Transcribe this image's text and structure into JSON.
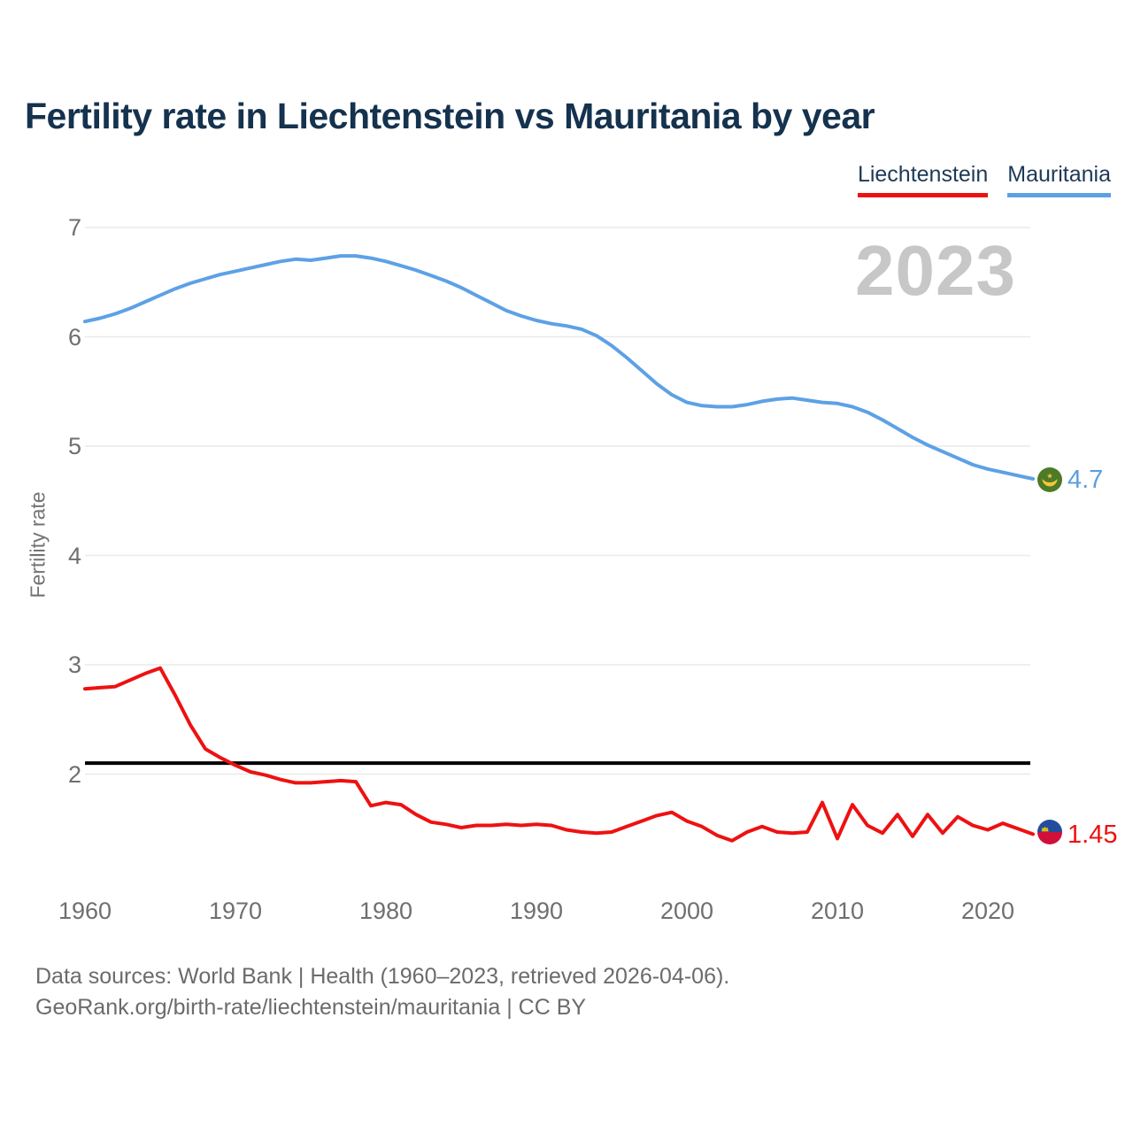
{
  "header": {
    "title": "Fertility rate in Liechtenstein vs Mauritania by year"
  },
  "legend": {
    "items": [
      {
        "label": "Liechtenstein",
        "underline_color": "#ee1111"
      },
      {
        "label": "Mauritania",
        "underline_color": "#5da1e5"
      }
    ]
  },
  "watermark_year": "2023",
  "chart_data": {
    "type": "line",
    "title": "Fertility rate in Liechtenstein vs Mauritania by year",
    "xlabel": "",
    "ylabel": "Fertility rate",
    "x_range": [
      1960,
      2023
    ],
    "years": [
      1960,
      1961,
      1962,
      1963,
      1964,
      1965,
      1966,
      1967,
      1968,
      1969,
      1970,
      1971,
      1972,
      1973,
      1974,
      1975,
      1976,
      1977,
      1978,
      1979,
      1980,
      1981,
      1982,
      1983,
      1984,
      1985,
      1986,
      1987,
      1988,
      1989,
      1990,
      1991,
      1992,
      1993,
      1994,
      1995,
      1996,
      1997,
      1998,
      1999,
      2000,
      2001,
      2002,
      2003,
      2004,
      2005,
      2006,
      2007,
      2008,
      2009,
      2010,
      2011,
      2012,
      2013,
      2014,
      2015,
      2016,
      2017,
      2018,
      2019,
      2020,
      2021,
      2022,
      2023
    ],
    "series": [
      {
        "name": "Mauritania",
        "color": "#5da1e5",
        "values": [
          6.14,
          6.17,
          6.21,
          6.26,
          6.32,
          6.38,
          6.44,
          6.49,
          6.53,
          6.57,
          6.6,
          6.63,
          6.66,
          6.69,
          6.71,
          6.7,
          6.72,
          6.74,
          6.74,
          6.72,
          6.69,
          6.65,
          6.61,
          6.56,
          6.51,
          6.45,
          6.38,
          6.31,
          6.24,
          6.19,
          6.15,
          6.12,
          6.1,
          6.07,
          6.01,
          5.92,
          5.81,
          5.69,
          5.57,
          5.47,
          5.4,
          5.37,
          5.36,
          5.36,
          5.38,
          5.41,
          5.43,
          5.44,
          5.42,
          5.4,
          5.39,
          5.36,
          5.31,
          5.24,
          5.16,
          5.08,
          5.01,
          4.95,
          4.89,
          4.83,
          4.79,
          4.76,
          4.73,
          4.7
        ]
      },
      {
        "name": "Liechtenstein",
        "color": "#ee1111",
        "values": [
          2.78,
          2.79,
          2.8,
          2.86,
          2.92,
          2.97,
          2.72,
          2.45,
          2.23,
          2.15,
          2.08,
          2.02,
          1.99,
          1.95,
          1.92,
          1.92,
          1.93,
          1.94,
          1.93,
          1.71,
          1.74,
          1.72,
          1.63,
          1.56,
          1.54,
          1.51,
          1.53,
          1.53,
          1.54,
          1.53,
          1.54,
          1.53,
          1.49,
          1.47,
          1.46,
          1.47,
          1.52,
          1.57,
          1.62,
          1.65,
          1.57,
          1.52,
          1.44,
          1.39,
          1.47,
          1.52,
          1.47,
          1.46,
          1.47,
          1.74,
          1.41,
          1.72,
          1.53,
          1.46,
          1.63,
          1.43,
          1.63,
          1.46,
          1.61,
          1.53,
          1.49,
          1.55,
          1.5,
          1.45
        ]
      }
    ],
    "y_axis": {
      "ticks": [
        7,
        6,
        5,
        4,
        3,
        2
      ]
    },
    "x_axis": {
      "ticks": [
        1960,
        1970,
        1980,
        1990,
        2000,
        2010,
        2020
      ]
    },
    "reference_line": {
      "value": 2.1,
      "color": "#000000"
    },
    "grid": "horizontal",
    "legend_position": "top-right",
    "end_labels": {
      "mauritania": "4.7",
      "liechtenstein": "1.45"
    }
  },
  "colors": {
    "title": "#15324e",
    "axis_text": "#6f6f6f",
    "gridline": "#eaeaea",
    "watermark": "#c7c7c7",
    "mauritania_flag_green": "#4d7a26",
    "mauritania_flag_yellow": "#f0c63c",
    "liechtenstein_flag_blue": "#234d9c",
    "liechtenstein_flag_red": "#d0103a"
  },
  "footer": {
    "line1": "Data sources: World Bank | Health (1960–2023, retrieved 2026-04-06).",
    "line2": "GeoRank.org/birth-rate/liechtenstein/mauritania | CC BY"
  }
}
